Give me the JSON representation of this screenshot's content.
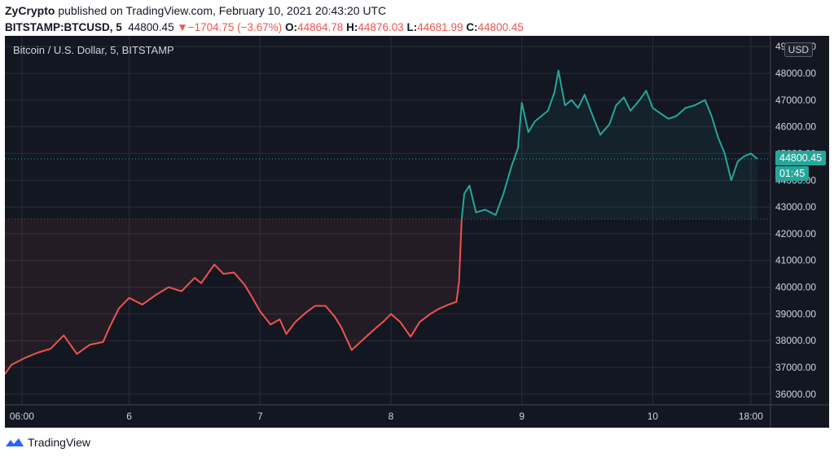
{
  "header": {
    "author": "ZyCrypto",
    "published_text": "published on TradingView.com, February 10, 2021 20:43:20 UTC",
    "symbol": "BITSTAMP:BTCUSD, 5",
    "last": "44800.45",
    "change_arrow": "▼",
    "change": "−1704.75 (−3.67%)",
    "o_label": "O:",
    "o_value": "44864.78",
    "h_label": "H:",
    "h_value": "44876.03",
    "l_label": "L:",
    "l_value": "44681.99",
    "c_label": "C:",
    "c_value": "44800.45"
  },
  "chart": {
    "title": "Bitcoin / U.S. Dollar, 5, BITSTAMP",
    "currency_button": "USD",
    "last_price_label": "44800.45",
    "countdown_label": "01:45"
  },
  "footer": {
    "brand": "TradingView"
  },
  "chart_data": {
    "type": "line",
    "title": "Bitcoin / U.S. Dollar, 5, BITSTAMP",
    "xlabel": "",
    "ylabel": "",
    "x_tick_labels": [
      "06:00",
      "6",
      "7",
      "8",
      "9",
      "10",
      "18:00"
    ],
    "y_tick_labels": [
      "36000.00",
      "37000.00",
      "38000.00",
      "39000.00",
      "40000.00",
      "41000.00",
      "42000.00",
      "43000.00",
      "44000.00",
      "45000.00",
      "46000.00",
      "47000.00",
      "48000.00",
      "49000.00"
    ],
    "ylim": [
      35600,
      49400
    ],
    "x_range_days": [
      5.05,
      10.9
    ],
    "baseline": 42550,
    "colors": {
      "above": "#26a69a",
      "below": "#ef5350",
      "background": "#131722"
    },
    "series": [
      {
        "values": [
          [
            5.05,
            36750
          ],
          [
            5.1,
            37100
          ],
          [
            5.2,
            37350
          ],
          [
            5.3,
            37550
          ],
          [
            5.4,
            37700
          ],
          [
            5.5,
            38200
          ],
          [
            5.6,
            37500
          ],
          [
            5.7,
            37850
          ],
          [
            5.8,
            37950
          ],
          [
            5.85,
            38500
          ],
          [
            5.92,
            39200
          ],
          [
            6.0,
            39600
          ],
          [
            6.1,
            39350
          ],
          [
            6.2,
            39700
          ],
          [
            6.3,
            40000
          ],
          [
            6.4,
            39850
          ],
          [
            6.5,
            40350
          ],
          [
            6.55,
            40150
          ],
          [
            6.65,
            40850
          ],
          [
            6.72,
            40500
          ],
          [
            6.8,
            40550
          ],
          [
            6.88,
            40100
          ],
          [
            6.93,
            39700
          ],
          [
            7.0,
            39100
          ],
          [
            7.08,
            38600
          ],
          [
            7.15,
            38800
          ],
          [
            7.2,
            38250
          ],
          [
            7.27,
            38700
          ],
          [
            7.35,
            39050
          ],
          [
            7.42,
            39300
          ],
          [
            7.5,
            39300
          ],
          [
            7.57,
            38900
          ],
          [
            7.62,
            38500
          ],
          [
            7.7,
            37650
          ],
          [
            7.8,
            38100
          ],
          [
            7.88,
            38450
          ],
          [
            7.95,
            38750
          ],
          [
            8.0,
            39000
          ],
          [
            8.07,
            38700
          ],
          [
            8.15,
            38150
          ],
          [
            8.22,
            38700
          ],
          [
            8.3,
            39000
          ],
          [
            8.37,
            39200
          ],
          [
            8.44,
            39350
          ],
          [
            8.5,
            39450
          ],
          [
            8.52,
            40200
          ],
          [
            8.54,
            42500
          ],
          [
            8.56,
            43500
          ],
          [
            8.6,
            43800
          ],
          [
            8.65,
            42800
          ],
          [
            8.72,
            42900
          ],
          [
            8.8,
            42700
          ],
          [
            8.86,
            43500
          ],
          [
            8.92,
            44500
          ],
          [
            8.97,
            45200
          ],
          [
            9.0,
            46900
          ],
          [
            9.05,
            45800
          ],
          [
            9.1,
            46200
          ],
          [
            9.2,
            46600
          ],
          [
            9.25,
            47300
          ],
          [
            9.28,
            48100
          ],
          [
            9.33,
            46800
          ],
          [
            9.38,
            47000
          ],
          [
            9.43,
            46700
          ],
          [
            9.48,
            47200
          ],
          [
            9.55,
            46300
          ],
          [
            9.6,
            45700
          ],
          [
            9.67,
            46100
          ],
          [
            9.72,
            46800
          ],
          [
            9.78,
            47100
          ],
          [
            9.83,
            46600
          ],
          [
            9.9,
            47000
          ],
          [
            9.95,
            47350
          ],
          [
            10.0,
            46700
          ],
          [
            10.06,
            46500
          ],
          [
            10.12,
            46300
          ],
          [
            10.18,
            46400
          ],
          [
            10.25,
            46700
          ],
          [
            10.32,
            46800
          ],
          [
            10.4,
            47000
          ],
          [
            10.45,
            46400
          ],
          [
            10.5,
            45600
          ],
          [
            10.55,
            45000
          ],
          [
            10.6,
            44000
          ],
          [
            10.65,
            44700
          ],
          [
            10.7,
            44900
          ],
          [
            10.75,
            45000
          ],
          [
            10.8,
            44800
          ]
        ]
      }
    ]
  }
}
